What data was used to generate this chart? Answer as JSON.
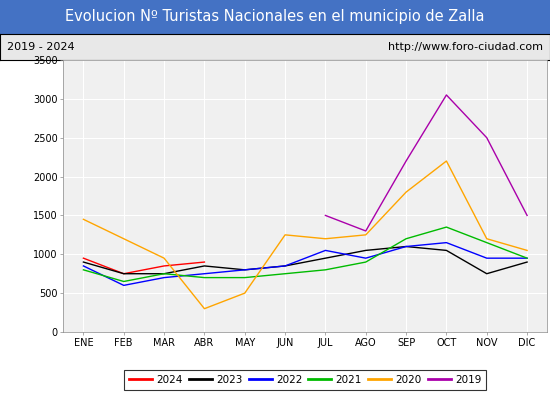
{
  "title": "Evolucion Nº Turistas Nacionales en el municipio de Zalla",
  "subtitle_left": "2019 - 2024",
  "subtitle_right": "http://www.foro-ciudad.com",
  "xlabel_months": [
    "ENE",
    "FEB",
    "MAR",
    "ABR",
    "MAY",
    "JUN",
    "JUL",
    "AGO",
    "SEP",
    "OCT",
    "NOV",
    "DIC"
  ],
  "ylim": [
    0,
    3500
  ],
  "yticks": [
    0,
    500,
    1000,
    1500,
    2000,
    2500,
    3000,
    3500
  ],
  "series": {
    "2024": {
      "color": "#ff0000",
      "data": [
        950,
        750,
        850,
        900,
        null,
        null,
        null,
        null,
        null,
        null,
        null,
        null
      ]
    },
    "2023": {
      "color": "#000000",
      "data": [
        900,
        750,
        750,
        850,
        800,
        850,
        950,
        1050,
        1100,
        1050,
        750,
        900
      ]
    },
    "2022": {
      "color": "#0000ff",
      "data": [
        850,
        600,
        700,
        750,
        800,
        850,
        1050,
        950,
        1100,
        1150,
        950,
        950
      ]
    },
    "2021": {
      "color": "#00bb00",
      "data": [
        800,
        650,
        750,
        700,
        700,
        750,
        800,
        900,
        1200,
        1350,
        1150,
        950
      ]
    },
    "2020": {
      "color": "#ffa500",
      "data": [
        1450,
        1200,
        950,
        300,
        500,
        1250,
        1200,
        1250,
        1800,
        2200,
        1200,
        1050
      ]
    },
    "2019": {
      "color": "#aa00aa",
      "data": [
        null,
        null,
        null,
        null,
        null,
        null,
        1500,
        1300,
        2200,
        3050,
        2500,
        1500
      ]
    }
  },
  "title_bg_color": "#4472c4",
  "title_text_color": "#ffffff",
  "subtitle_bg_color": "#e8e8e8",
  "plot_bg_color": "#f0f0f0",
  "grid_color": "#ffffff",
  "title_fontsize": 10.5,
  "subtitle_fontsize": 8,
  "tick_fontsize": 7,
  "legend_fontsize": 7.5
}
